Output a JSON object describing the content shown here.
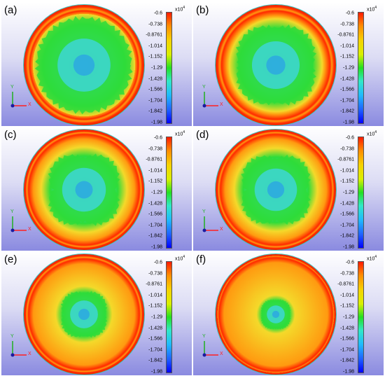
{
  "figure": {
    "panels": [
      {
        "label": "(a)",
        "core_radius": 0.8,
        "ring_radius": 0.9,
        "cross": 0.05
      },
      {
        "label": "(b)",
        "core_radius": 0.72,
        "ring_radius": 0.9,
        "cross": 0.3
      },
      {
        "label": "(c)",
        "core_radius": 0.66,
        "ring_radius": 0.92,
        "cross": 0.42
      },
      {
        "label": "(d)",
        "core_radius": 0.64,
        "ring_radius": 0.92,
        "cross": 0.42
      },
      {
        "label": "(e)",
        "core_radius": 0.42,
        "ring_radius": 0.92,
        "cross": 0.35
      },
      {
        "label": "(f)",
        "core_radius": 0.27,
        "ring_radius": 0.94,
        "cross": 0.3
      }
    ],
    "colorbar": {
      "scale": "x10",
      "scale_exp": "4",
      "ticks": [
        "-0.6",
        "-0.738",
        "-0.8761",
        "-1.014",
        "-1.152",
        "-1.29",
        "-1.428",
        "-1.566",
        "-1.704",
        "-1.842",
        "-1.98"
      ]
    },
    "axes": {
      "x": "X",
      "y": "Y"
    },
    "colors": {
      "red": "#ff2a00",
      "orange": "#ff9a10",
      "yellow": "#f4d92a",
      "green": "#2edc3a",
      "cyan": "#3fd6dc",
      "blue": "#2a9ee8"
    }
  }
}
